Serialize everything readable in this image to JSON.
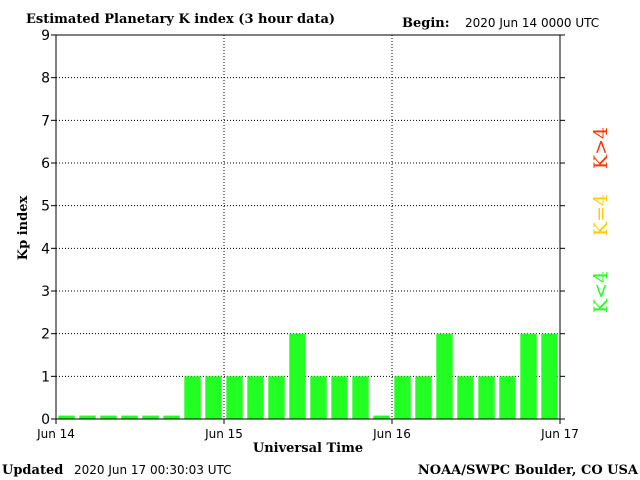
{
  "header": {
    "title": "Estimated Planetary K index (3 hour data)",
    "begin_label": "Begin:",
    "begin_value": "2020 Jun 14 0000 UTC"
  },
  "footer": {
    "updated_label": "Updated",
    "updated_value": "2020 Jun 17 00:30:03 UTC",
    "source": "NOAA/SWPC Boulder, CO USA"
  },
  "legend": {
    "high_label": "K>4",
    "equal_label": "K=4",
    "low_label": "K<4"
  },
  "colors": {
    "low": "#22ff22",
    "equal": "#ffcc00",
    "high": "#ff3300",
    "axis": "#000000",
    "grid": "#000000",
    "background": "#ffffff"
  },
  "chart_data": {
    "type": "bar",
    "title": "Estimated Planetary K index (3 hour data)",
    "xlabel": "Universal Time",
    "ylabel": "Kp index",
    "ylim": [
      0,
      9
    ],
    "yticks": [
      "0",
      "1",
      "2",
      "3",
      "4",
      "5",
      "6",
      "7",
      "8",
      "9"
    ],
    "xticks": [
      "Jun 14",
      "Jun 15",
      "Jun 16",
      "Jun 17"
    ],
    "grid": true,
    "interval_hours": 3,
    "values": [
      0,
      0,
      0,
      0,
      0,
      0,
      1,
      1,
      1,
      1,
      1,
      2,
      1,
      1,
      1,
      0,
      1,
      1,
      2,
      1,
      1,
      1,
      2,
      2
    ]
  }
}
